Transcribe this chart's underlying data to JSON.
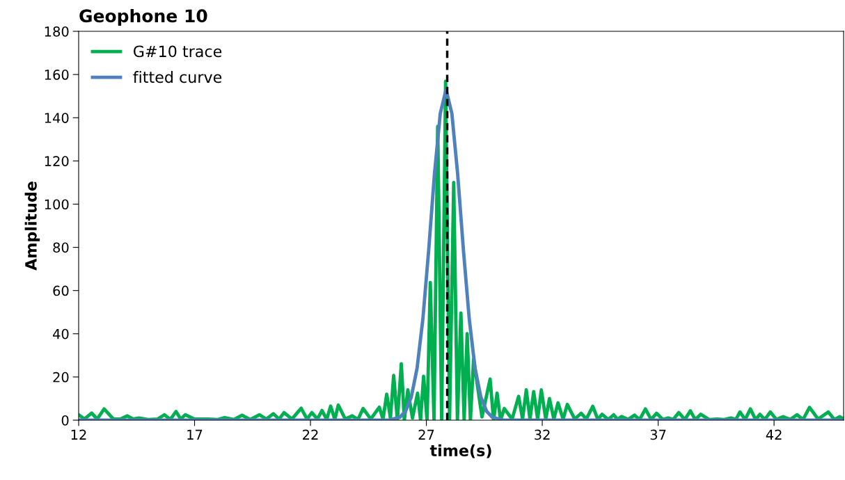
{
  "chart_data": {
    "type": "line",
    "title": "Geophone 10",
    "xlabel": "time(s)",
    "ylabel": "Amplitude",
    "xlim": [
      12,
      45
    ],
    "xticks": [
      12,
      17,
      22,
      27,
      32,
      37,
      42
    ],
    "ylim": [
      0,
      180
    ],
    "yticks": [
      0,
      20,
      40,
      60,
      80,
      100,
      120,
      140,
      160,
      180
    ],
    "grid": false,
    "legend": "top left",
    "marker": "none",
    "line_style": "solid",
    "ref_lines": [
      {
        "axis": "x",
        "value": 27.9,
        "color": "#000000",
        "line_style": "dashed"
      }
    ],
    "series": [
      {
        "name": "G#10 trace",
        "color": "#00b050",
        "x": [
          12,
          12.25,
          12.56,
          12.8,
          13.1,
          13.5,
          13.8,
          14.1,
          14.35,
          14.6,
          15.0,
          15.4,
          15.7,
          15.95,
          16.2,
          16.4,
          16.6,
          17.0,
          17.6,
          18.0,
          18.3,
          18.7,
          19.05,
          19.4,
          19.8,
          20.1,
          20.4,
          20.65,
          20.86,
          21.2,
          21.6,
          21.85,
          22.06,
          22.3,
          22.5,
          22.7,
          22.87,
          23.05,
          23.2,
          23.5,
          23.8,
          24.05,
          24.27,
          24.6,
          24.97,
          25.13,
          25.29,
          25.45,
          25.59,
          25.75,
          25.92,
          26.05,
          26.2,
          26.4,
          26.62,
          26.75,
          26.88,
          27.03,
          27.17,
          27.33,
          27.49,
          27.66,
          27.83,
          28.0,
          28.18,
          28.34,
          28.49,
          28.63,
          28.76,
          28.9,
          29.04,
          29.4,
          29.75,
          29.9,
          30.05,
          30.2,
          30.36,
          30.7,
          30.98,
          31.15,
          31.31,
          31.47,
          31.63,
          31.8,
          31.96,
          32.15,
          32.31,
          32.5,
          32.68,
          32.9,
          33.08,
          33.4,
          33.68,
          33.9,
          34.18,
          34.4,
          34.58,
          34.85,
          35.08,
          35.25,
          35.42,
          35.7,
          35.98,
          36.2,
          36.45,
          36.7,
          36.93,
          37.2,
          37.43,
          37.65,
          37.89,
          38.15,
          38.39,
          38.6,
          38.84,
          39.2,
          39.54,
          39.85,
          40.14,
          40.35,
          40.53,
          40.75,
          40.98,
          41.2,
          41.39,
          41.6,
          41.84,
          42.1,
          42.39,
          42.7,
          42.99,
          43.25,
          43.53,
          43.9,
          44.34,
          44.6,
          44.84,
          45.0
        ],
        "values": [
          2.5,
          0.5,
          3.3,
          0.5,
          5.2,
          0.5,
          0.5,
          2,
          0.5,
          1,
          0.3,
          0.5,
          2.5,
          0.3,
          4,
          0.5,
          2.5,
          0.5,
          0.5,
          0.3,
          1.2,
          0.3,
          2.3,
          0.3,
          2.5,
          0.5,
          3,
          0.5,
          3.5,
          0.5,
          5.5,
          0.5,
          3.5,
          0.5,
          4.5,
          0.3,
          6.5,
          0.3,
          7,
          0.5,
          2,
          0.3,
          5.4,
          0.5,
          6,
          0.5,
          12,
          1,
          20.7,
          0,
          26.1,
          0,
          14,
          1,
          12.5,
          0,
          20.3,
          0,
          63.7,
          0,
          136,
          0,
          156.8,
          0,
          110,
          0,
          49.6,
          0,
          40,
          0,
          28.3,
          1.5,
          19,
          0,
          12.5,
          0,
          5.4,
          0.5,
          11,
          0.5,
          14,
          0.5,
          13.2,
          0.5,
          14,
          0.5,
          10,
          0.5,
          8,
          0.5,
          7.3,
          0.5,
          3.2,
          0.5,
          6.4,
          0.3,
          2.7,
          0.3,
          2.5,
          0.3,
          1.7,
          0.3,
          2.3,
          0.3,
          5.2,
          0.3,
          3.2,
          0.3,
          1,
          0.3,
          3.5,
          0.3,
          4.3,
          0.3,
          2.7,
          0.3,
          0.5,
          0.3,
          1,
          0.3,
          3.8,
          0.3,
          5.2,
          0.3,
          2.7,
          0.3,
          3.8,
          0.3,
          1.6,
          0.3,
          2.5,
          0.3,
          5.9,
          0.5,
          3.8,
          0.3,
          1.6,
          0.5
        ]
      },
      {
        "name": "fitted curve",
        "color": "#4f81bd",
        "x": [
          12,
          25.35,
          25.85,
          26.1,
          26.35,
          26.6,
          26.85,
          27.1,
          27.35,
          27.6,
          27.85,
          28.1,
          28.35,
          28.6,
          28.85,
          29.1,
          29.35,
          29.6,
          29.85,
          30.35,
          45
        ],
        "values": [
          0,
          0,
          1.3,
          4.1,
          10.7,
          24.1,
          46.9,
          78.6,
          114,
          142,
          153,
          142,
          114,
          78.6,
          46.9,
          24.1,
          10.7,
          4.1,
          1.3,
          0,
          0
        ]
      }
    ]
  }
}
